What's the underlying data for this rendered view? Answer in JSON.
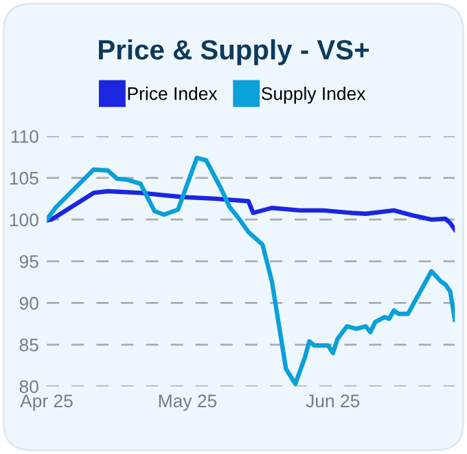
{
  "chart_data": {
    "type": "line",
    "title": "Price & Supply - VS+",
    "xlim": [
      "2025-04-01",
      "2025-06-27"
    ],
    "xticks": [
      {
        "value": "2025-04-01",
        "label": "Apr 25"
      },
      {
        "value": "2025-05-01",
        "label": "May 25"
      },
      {
        "value": "2025-06-01",
        "label": "Jun 25"
      }
    ],
    "ylim": [
      80,
      110
    ],
    "yticks": [
      80,
      85,
      90,
      95,
      100,
      105,
      110
    ],
    "grid": "y",
    "legend": "top",
    "series": [
      {
        "name": "Price Index",
        "color": "#1c26e0",
        "x": [
          "2025-04-01",
          "2025-04-02",
          "2025-04-11",
          "2025-04-14",
          "2025-04-21",
          "2025-04-30",
          "2025-05-07",
          "2025-05-14",
          "2025-05-15",
          "2025-05-19",
          "2025-05-25",
          "2025-05-30",
          "2025-06-05",
          "2025-06-08",
          "2025-06-14",
          "2025-06-18",
          "2025-06-22",
          "2025-06-25",
          "2025-06-26",
          "2025-06-27"
        ],
        "values": [
          99.9,
          100,
          103.2,
          103.4,
          103.2,
          102.7,
          102.5,
          102.2,
          100.8,
          101.4,
          101.1,
          101.1,
          100.8,
          100.7,
          101.1,
          100.5,
          100,
          100.1,
          99.6,
          98.8
        ]
      },
      {
        "name": "Supply Index",
        "color": "#0aa0d8",
        "x": [
          "2025-04-01",
          "2025-04-03",
          "2025-04-11",
          "2025-04-14",
          "2025-04-16",
          "2025-04-18",
          "2025-04-21",
          "2025-04-24",
          "2025-04-26",
          "2025-04-29",
          "2025-05-03",
          "2025-05-05",
          "2025-05-08",
          "2025-05-10",
          "2025-05-12",
          "2025-05-14",
          "2025-05-17",
          "2025-05-19",
          "2025-05-22",
          "2025-05-24",
          "2025-05-26",
          "2025-05-27",
          "2025-05-28",
          "2025-05-31",
          "2025-06-01",
          "2025-06-02",
          "2025-06-04",
          "2025-06-06",
          "2025-06-08",
          "2025-06-09",
          "2025-06-10",
          "2025-06-12",
          "2025-06-13",
          "2025-06-14",
          "2025-06-15",
          "2025-06-17",
          "2025-06-22",
          "2025-06-24",
          "2025-06-25",
          "2025-06-26",
          "2025-06-27"
        ],
        "values": [
          100,
          101.5,
          106,
          105.9,
          104.9,
          104.8,
          104.3,
          101,
          100.6,
          101.2,
          107.4,
          107.1,
          103.9,
          101.5,
          100.1,
          98.5,
          97,
          92.6,
          82.1,
          80.3,
          83.4,
          85.4,
          84.9,
          84.9,
          84,
          85.7,
          87.2,
          86.9,
          87.2,
          86.5,
          87.7,
          88.3,
          88.1,
          89.1,
          88.7,
          88.7,
          93.8,
          92.6,
          92.2,
          91.4,
          88
        ]
      }
    ]
  }
}
